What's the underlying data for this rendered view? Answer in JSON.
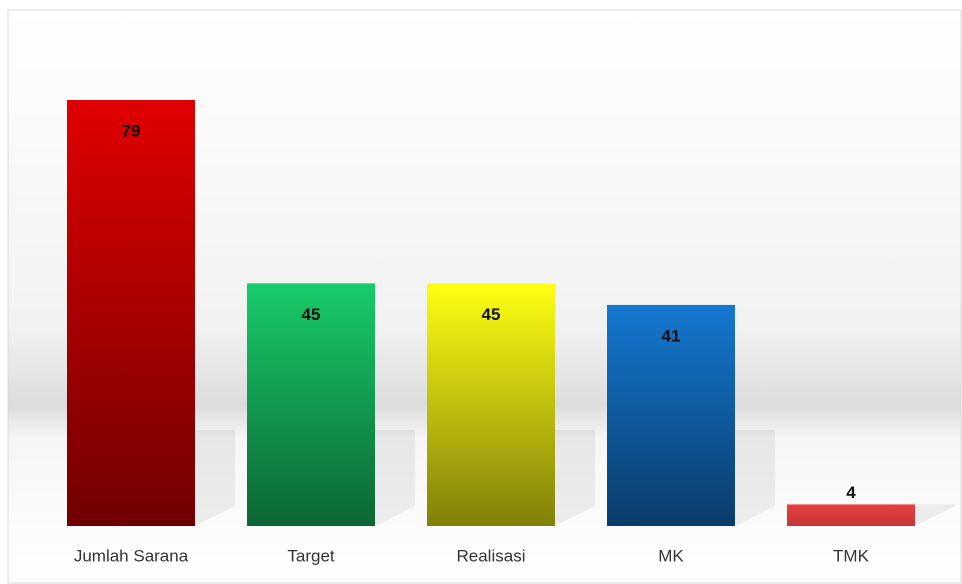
{
  "chart_data": {
    "type": "bar",
    "categories": [
      "Jumlah Sarana",
      "Target",
      "Realisasi",
      "MK",
      "TMK"
    ],
    "values": [
      79,
      45,
      45,
      41,
      4
    ],
    "colors": [
      "#e00000",
      "#18cc6a",
      "#ffff12",
      "#1478d2",
      "#e84040"
    ]
  }
}
